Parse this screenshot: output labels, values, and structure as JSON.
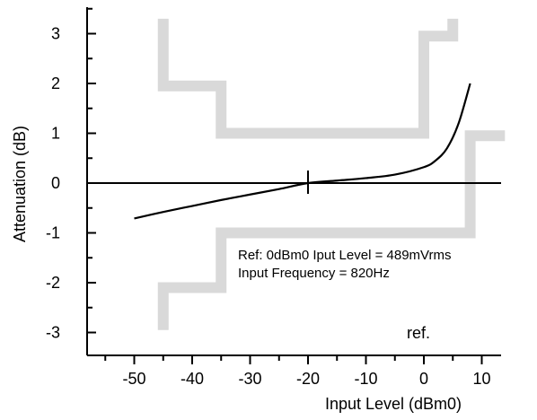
{
  "chart_data": {
    "type": "line",
    "title": "",
    "xlabel": "Input Level (dBm0)",
    "ylabel": "Attenuation (dB)",
    "xlim": [
      -58,
      14
    ],
    "ylim": [
      -3.4,
      3.5
    ],
    "x_ticks": [
      -50,
      -40,
      -30,
      -20,
      -10,
      0,
      10
    ],
    "y_ticks": [
      -3,
      -2,
      -1,
      0,
      1,
      2,
      3
    ],
    "grid": false,
    "series": [
      {
        "color": "#000000",
        "x": [
          -50,
          -45,
          -40,
          -35,
          -30,
          -25,
          -20,
          -15,
          -10,
          -5,
          0,
          2,
          4,
          6,
          8
        ],
        "y": [
          -0.71,
          -0.58,
          -0.46,
          -0.34,
          -0.23,
          -0.12,
          0.0,
          0.05,
          0.1,
          0.17,
          0.32,
          0.45,
          0.7,
          1.2,
          2.0
        ]
      }
    ],
    "reference_marker": {
      "x": -20,
      "y": 0,
      "label": "ref."
    },
    "tolerance_mask": {
      "color": "#d9d9d9",
      "upper": {
        "x": [
          -45,
          -45,
          -35,
          -35,
          0,
          0,
          5,
          5
        ],
        "y": [
          3.3,
          1.95,
          1.95,
          1.0,
          1.0,
          2.95,
          2.95,
          3.3
        ]
      },
      "lower": {
        "x": [
          -45,
          -45,
          -35,
          -35,
          8,
          8,
          14
        ],
        "y": [
          -2.95,
          -2.1,
          -2.1,
          -1.0,
          -1.0,
          0.95,
          0.95
        ]
      }
    },
    "annotations": [
      "Ref:  0dBm0  Iput  Level  =  489mVrms",
      "Input  Frequency  =  820Hz"
    ]
  }
}
